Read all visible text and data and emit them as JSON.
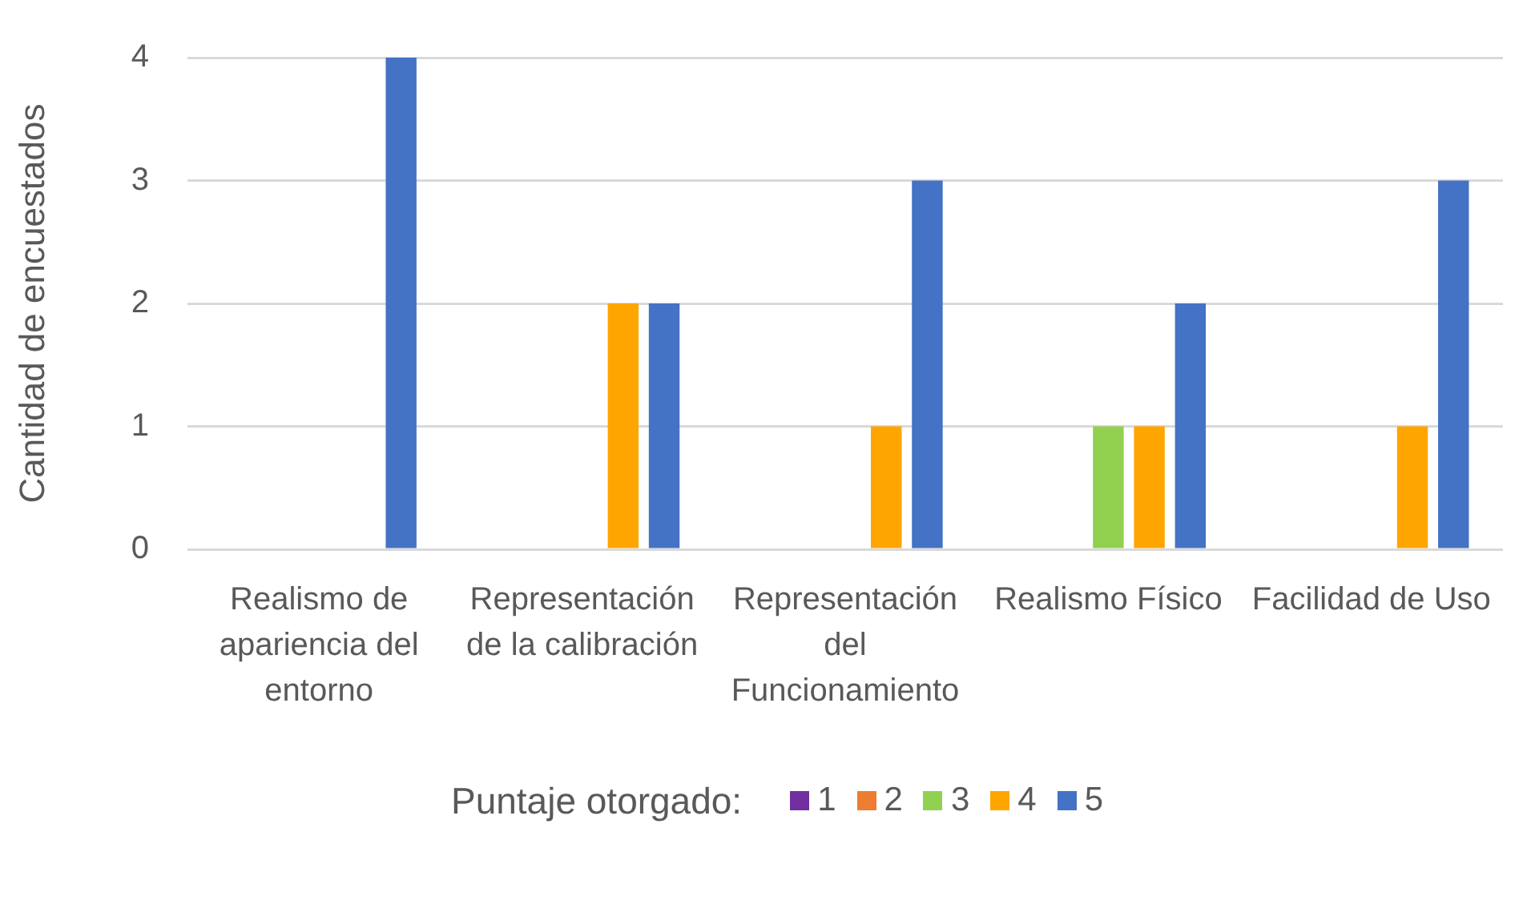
{
  "chart_data": {
    "type": "bar",
    "categories": [
      "Realismo de apariencia del entorno",
      "Representación de la calibración",
      "Representación del Funcionamiento",
      "Realismo Físico",
      "Facilidad de Uso"
    ],
    "series": [
      {
        "name": "1",
        "color": "#7030a0",
        "values": [
          0,
          0,
          0,
          0,
          0
        ]
      },
      {
        "name": "2",
        "color": "#ed7d31",
        "values": [
          0,
          0,
          0,
          0,
          0
        ]
      },
      {
        "name": "3",
        "color": "#92d050",
        "values": [
          0,
          0,
          0,
          1,
          0
        ]
      },
      {
        "name": "4",
        "color": "#ffa500",
        "values": [
          0,
          2,
          1,
          1,
          1
        ]
      },
      {
        "name": "5",
        "color": "#4472c4",
        "values": [
          4,
          2,
          3,
          2,
          3
        ]
      }
    ],
    "ylabel": "Cantidad de encuestados",
    "legend_title": "Puntaje otorgado:",
    "ylim": [
      0,
      4
    ],
    "yticks": [
      0,
      1,
      2,
      3,
      4
    ],
    "grid": "y",
    "legend": "bottom"
  }
}
